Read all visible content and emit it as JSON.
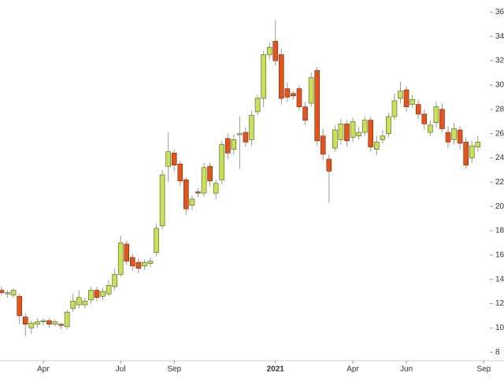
{
  "chart_data": {
    "type": "candlestick",
    "categories": [
      null,
      null,
      null,
      null,
      null,
      null,
      null,
      "Apr",
      null,
      null,
      null,
      null,
      null,
      null,
      null,
      null,
      null,
      null,
      null,
      null,
      "Jul",
      null,
      null,
      null,
      null,
      null,
      null,
      null,
      null,
      "Sep",
      null,
      null,
      null,
      null,
      null,
      null,
      null,
      null,
      null,
      null,
      null,
      null,
      null,
      null,
      null,
      null,
      "2021",
      null,
      null,
      null,
      null,
      null,
      null,
      null,
      null,
      null,
      null,
      null,
      null,
      "Apr",
      null,
      null,
      null,
      null,
      null,
      null,
      null,
      null,
      "Jun",
      null,
      null,
      null,
      null,
      null,
      null,
      null,
      null,
      null,
      null,
      null,
      null,
      "Sep"
    ],
    "open": [
      13.1,
      12.8,
      12.7,
      12.6,
      10.9,
      10.0,
      10.3,
      10.5,
      10.6,
      10.3,
      10.3,
      10.1,
      11.6,
      11.9,
      11.9,
      12.3,
      13.1,
      12.6,
      12.8,
      13.4,
      14.4,
      16.9,
      15.8,
      15.4,
      15.1,
      15.3,
      16.2,
      18.4,
      23.3,
      24.4,
      23.5,
      22.2,
      20.1,
      21.2,
      21.1,
      23.3,
      21.1,
      22.2,
      25.6,
      24.7,
      25.9,
      26.1,
      25.5,
      27.8,
      28.9,
      32.5,
      33.6,
      32.5,
      29.7,
      29.3,
      29.7,
      28.2,
      28.5,
      31.2,
      25.8,
      23.9,
      24.8,
      25.5,
      26.8,
      25.7,
      25.8,
      26.1,
      27.1,
      24.7,
      25.5,
      26.0,
      27.4,
      28.9,
      29.6,
      28.4,
      28.4,
      27.6,
      26.1,
      26.9,
      28.0,
      26.1,
      25.5,
      26.3,
      25.3,
      24.0,
      24.9,
      null
    ],
    "high": [
      13.4,
      13.1,
      13.3,
      12.8,
      11.2,
      10.6,
      10.8,
      10.8,
      10.8,
      10.7,
      10.4,
      11.5,
      12.8,
      13.1,
      12.5,
      13.4,
      13.4,
      13.3,
      13.9,
      14.9,
      17.6,
      17.2,
      16.1,
      15.7,
      15.6,
      15.8,
      18.6,
      23.0,
      26.1,
      24.7,
      23.8,
      22.4,
      20.9,
      21.5,
      23.6,
      23.6,
      22.2,
      25.4,
      26.0,
      25.9,
      27.4,
      26.5,
      27.9,
      29.2,
      32.8,
      33.5,
      35.3,
      33.0,
      30.2,
      29.5,
      30.0,
      28.6,
      31.0,
      31.5,
      26.4,
      24.3,
      26.7,
      27.2,
      27.1,
      27.3,
      26.5,
      27.4,
      27.4,
      25.8,
      26.3,
      27.7,
      29.3,
      30.3,
      29.9,
      29.2,
      28.8,
      28.0,
      27.1,
      28.6,
      28.5,
      26.6,
      26.9,
      26.6,
      25.7,
      25.4,
      25.8,
      null
    ],
    "low": [
      12.7,
      12.5,
      12.5,
      10.3,
      9.3,
      9.5,
      10.0,
      10.2,
      10.0,
      10.1,
      9.9,
      9.9,
      11.3,
      11.6,
      11.6,
      12.0,
      12.2,
      12.3,
      12.6,
      13.1,
      14.2,
      15.2,
      14.7,
      14.5,
      14.8,
      15.0,
      15.9,
      18.1,
      22.0,
      22.9,
      21.7,
      19.3,
      19.7,
      20.8,
      20.8,
      21.6,
      20.6,
      21.8,
      23.9,
      24.3,
      23.1,
      24.9,
      25.0,
      27.5,
      28.2,
      32.1,
      31.6,
      28.4,
      28.6,
      28.8,
      27.9,
      26.7,
      28.2,
      25.0,
      23.8,
      20.3,
      24.5,
      25.1,
      24.9,
      25.3,
      25.5,
      25.8,
      24.5,
      24.2,
      25.2,
      25.7,
      27.1,
      28.5,
      27.8,
      28.1,
      27.2,
      26.3,
      25.8,
      26.5,
      26.1,
      24.8,
      25.1,
      24.7,
      23.1,
      23.6,
      24.5,
      null
    ],
    "close": [
      12.9,
      12.9,
      13.1,
      11.0,
      10.3,
      10.4,
      10.5,
      10.6,
      10.3,
      10.5,
      10.2,
      11.3,
      12.2,
      12.5,
      12.2,
      13.1,
      12.5,
      13.0,
      13.5,
      14.4,
      17.0,
      15.5,
      15.1,
      14.9,
      15.4,
      15.5,
      18.2,
      22.6,
      24.5,
      23.4,
      22.1,
      19.8,
      20.6,
      21.1,
      23.2,
      22.1,
      21.9,
      25.1,
      24.4,
      25.5,
      26.0,
      25.3,
      27.5,
      28.9,
      32.5,
      33.1,
      32.0,
      28.9,
      29.0,
      29.1,
      28.2,
      27.1,
      30.6,
      25.4,
      24.3,
      22.9,
      26.3,
      26.8,
      25.4,
      27.0,
      26.1,
      27.1,
      24.9,
      25.3,
      25.8,
      27.4,
      28.7,
      29.5,
      28.2,
      28.8,
      27.6,
      26.8,
      26.7,
      28.2,
      26.4,
      25.3,
      26.4,
      25.2,
      23.4,
      25.0,
      25.3,
      null
    ],
    "up_color": "#c8e05a",
    "down_color": "#e0541e",
    "ylim": [
      7.3,
      37.0
    ],
    "yticks": [
      8,
      10,
      12,
      14,
      16,
      18,
      20,
      22,
      24,
      26,
      28,
      30,
      32,
      34,
      36
    ]
  }
}
